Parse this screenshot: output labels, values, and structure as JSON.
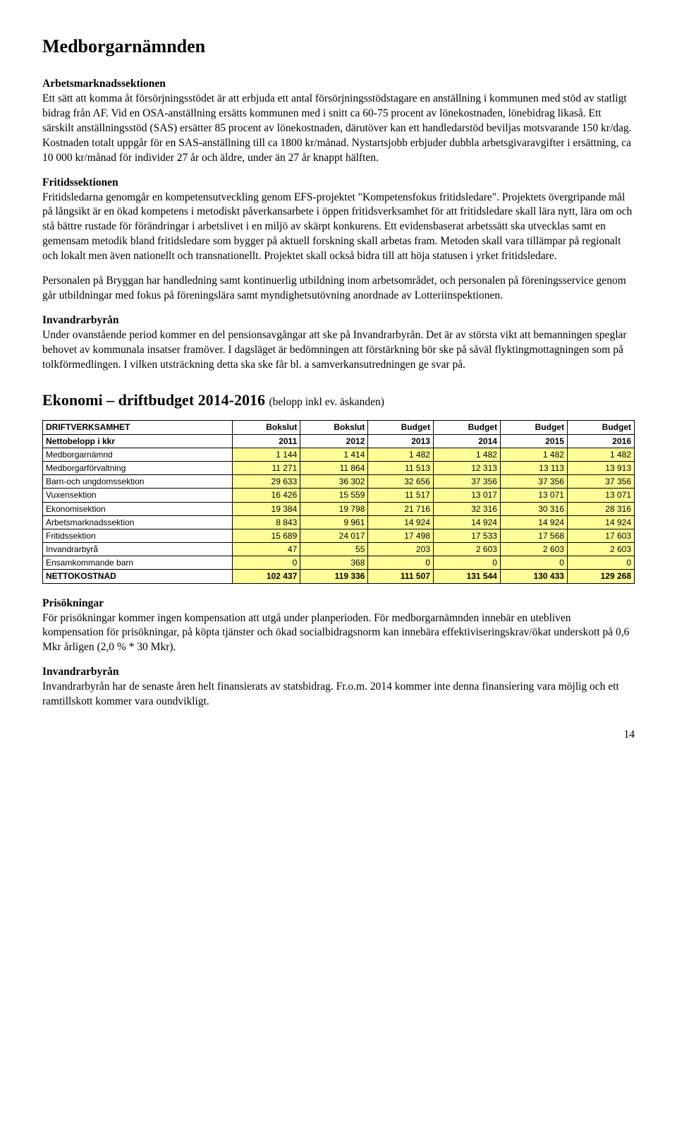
{
  "page_title": "Medborgarnämnden",
  "sections": {
    "arbetsmarknad": {
      "title": "Arbetsmarknadssektionen",
      "body": "Ett sätt att komma åt försörjningsstödet är att erbjuda ett antal försörjningsstödstagare en anställning i kommunen med stöd av statligt bidrag från AF. Vid en OSA-anställning ersätts kommunen med i snitt ca 60-75 procent av lönekostnaden, lönebidrag likaså. Ett särskilt anställningsstöd (SAS) ersätter 85 procent av lönekostnaden, därutöver kan ett handledarstöd beviljas motsvarande 150 kr/dag. Kostnaden totalt uppgår för en SAS-anställning till ca 1800 kr/månad. Nystartsjobb erbjuder dubbla arbetsgivaravgifter i ersättning, ca 10 000 kr/månad för individer 27 år och äldre, under än 27 år knappt hälften."
    },
    "fritid": {
      "title": "Fritidssektionen",
      "body1": "Fritidsledarna genomgår en kompetensutveckling genom EFS-projektet \"Kompetensfokus fritidsledare\". Projektets övergripande mål på långsikt är en ökad kompetens i metodiskt påverkansarbete i öppen fritidsverksamhet för att fritidsledare skall lära nytt, lära om och stå bättre rustade för förändringar i arbetslivet i en miljö av skärpt konkurens. Ett evidensbaserat arbetssätt ska utvecklas samt en gemensam metodik bland fritidsledare som bygger på aktuell forskning skall arbetas fram. Metoden skall vara tillämpar på regionalt och lokalt men även nationellt och transnationellt. Projektet skall också bidra till att höja statusen i yrket fritidsledare.",
      "body2": "Personalen på Bryggan har handledning samt kontinuerlig utbildning inom arbetsområdet, och personalen på föreningsservice genom går utbildningar med fokus på föreningslära samt myndighetsutövning anordnade av Lotteriinspektionen."
    },
    "invandrar1": {
      "title": "Invandrarbyrån",
      "body": "Under ovanstående period kommer en del pensionsavgångar att ske på Invandrarbyrån. Det är av största vikt att bemanningen speglar behovet av kommunala insatser framöver. I dagsläget är bedömningen att förstärkning bör ske på såväl flyktingmottagningen som på tolkförmedlingen. I vilken utsträckning detta ska ske får bl. a samverkansutredningen ge svar på."
    },
    "prisokningar": {
      "title": "Prisökningar",
      "body": "För prisökningar kommer ingen kompensation att utgå under planperioden. För medborgarnämnden innebär en utebliven kompensation för prisökningar, på köpta tjänster och ökad socialbidragsnorm kan innebära effektiviseringskrav/ökat underskott på 0,6 Mkr årligen (2,0 % * 30 Mkr)."
    },
    "invandrar2": {
      "title": "Invandrarbyrån",
      "body": "Invandrarbyrån har de senaste åren helt finansierats av statsbidrag. Fr.o.m. 2014 kommer inte denna finansiering vara möjlig och ett ramtillskott kommer vara oundvikligt."
    }
  },
  "ekonomi": {
    "heading_main": "Ekonomi – driftbudget 2014-2016",
    "heading_sub": "(belopp inkl ev. äskanden)"
  },
  "table": {
    "header_row1_label": "DRIFTVERKSAMHET",
    "header_row2_label": "Nettobelopp i kkr",
    "columns": [
      "Bokslut",
      "Bokslut",
      "Budget",
      "Budget",
      "Budget",
      "Budget"
    ],
    "years": [
      "2011",
      "2012",
      "2013",
      "2014",
      "2015",
      "2016"
    ],
    "rows": [
      {
        "label": "Medborgarnämnd",
        "values": [
          "1 144",
          "1 414",
          "1 482",
          "1 482",
          "1 482",
          "1 482"
        ]
      },
      {
        "label": "Medborgarförvaltning",
        "values": [
          "11 271",
          "11 864",
          "11 513",
          "12 313",
          "13 113",
          "13 913"
        ]
      },
      {
        "label": "Barn-och ungdomssektion",
        "values": [
          "29 633",
          "36 302",
          "32 656",
          "37 356",
          "37 356",
          "37 356"
        ]
      },
      {
        "label": "Vuxensektion",
        "values": [
          "16 426",
          "15 559",
          "11 517",
          "13 017",
          "13 071",
          "13 071"
        ]
      },
      {
        "label": "Ekonomisektion",
        "values": [
          "19 384",
          "19 798",
          "21 716",
          "32 316",
          "30 316",
          "28 316"
        ]
      },
      {
        "label": "Arbetsmarknadssektion",
        "values": [
          "8 843",
          "9 961",
          "14 924",
          "14 924",
          "14 924",
          "14 924"
        ]
      },
      {
        "label": "Fritidssektion",
        "values": [
          "15 689",
          "24 017",
          "17 498",
          "17 533",
          "17 568",
          "17 603"
        ]
      },
      {
        "label": "Invandrarbyrå",
        "values": [
          "47",
          "55",
          "203",
          "2 603",
          "2 603",
          "2 603"
        ]
      },
      {
        "label": "Ensamkommande barn",
        "values": [
          "0",
          "368",
          "0",
          "0",
          "0",
          "0"
        ]
      }
    ],
    "netto": {
      "label": "NETTOKOSTNAD",
      "values": [
        "102 437",
        "119 336",
        "111 507",
        "131 544",
        "130 433",
        "129 268"
      ]
    },
    "highlight_color": "#ffff99",
    "border_color": "#000000"
  },
  "page_number": "14"
}
